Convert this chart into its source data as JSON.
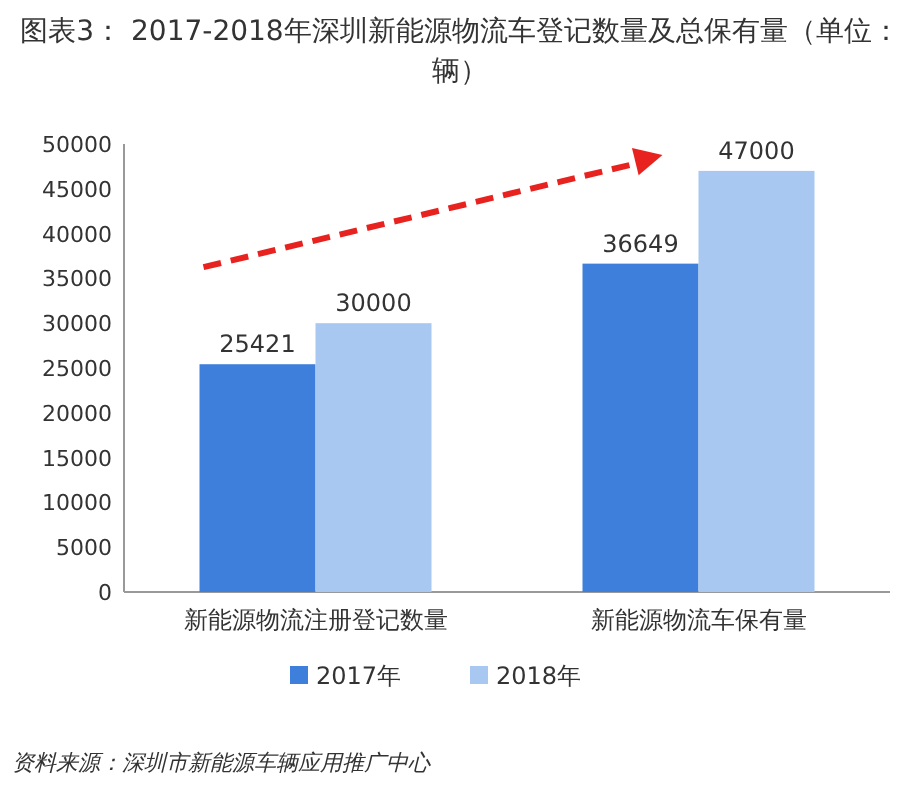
{
  "chart_data": {
    "type": "bar",
    "title": "图表3：  2017-2018年深圳新能源物流车登记数量及总保有量（单位：辆）",
    "categories": [
      "新能源物流注册登记数量",
      "新能源物流车保有量"
    ],
    "series": [
      {
        "name": "2017年",
        "color": "#3f7fdc",
        "values": [
          25421,
          36649
        ]
      },
      {
        "name": "2018年",
        "color": "#a8c8f2",
        "values": [
          30000,
          47000
        ]
      }
    ],
    "ylim": [
      0,
      50000
    ],
    "yticks": [
      0,
      5000,
      10000,
      15000,
      20000,
      25000,
      30000,
      35000,
      40000,
      45000,
      50000
    ],
    "data_labels": true,
    "legend": "bottom",
    "grid": false,
    "annotations": [
      "资料来源：深圳市新能源车辆应用推广中心"
    ]
  }
}
